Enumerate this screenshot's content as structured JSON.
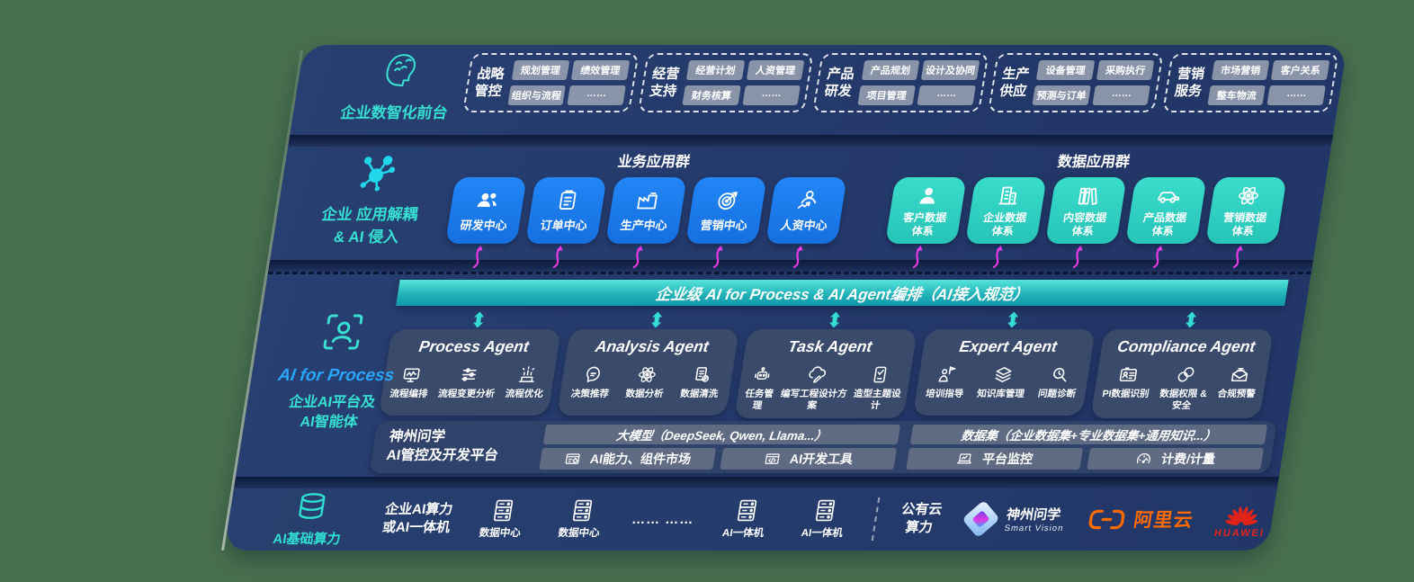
{
  "colors": {
    "navy_band": "#24396b",
    "shelf_dark": "#0c1b3d",
    "accent_teal": "#36e0d2",
    "accent_blue": "#2aa6f8",
    "app_blue": "#1b7bf3",
    "data_teal": "#31d4c6",
    "bar_teal_top": "#55e5dc",
    "bar_teal_bottom": "#0f97ab",
    "magenta_arrow": "#e53ae5",
    "pill_gray": "#8f99ad",
    "panel_gray": "#5f6b82",
    "agent_box": "#3a4a6b",
    "aliyun_orange": "#ff6a00",
    "huawei_red": "#e2231a",
    "page_background": "#47704e"
  },
  "front": {
    "icon": "brain-head-icon",
    "label": "企业数智化前台",
    "groups": [
      {
        "title": "战略管控",
        "items": [
          "规划管理",
          "绩效管理",
          "组织与流程",
          "……"
        ]
      },
      {
        "title": "经营支持",
        "items": [
          "经营计划",
          "人资管理",
          "财务核算",
          "……"
        ]
      },
      {
        "title": "产品研发",
        "items": [
          "产品规划",
          "设计及协同",
          "项目管理",
          "……"
        ]
      },
      {
        "title": "生产供应",
        "items": [
          "设备管理",
          "采购执行",
          "预测与订单",
          "……"
        ]
      },
      {
        "title": "营销服务",
        "items": [
          "市场营销",
          "客户关系",
          "整车物流",
          "……"
        ]
      }
    ]
  },
  "apps": {
    "icon": "molecule-icon",
    "label1": "企业 应用解耦",
    "label2": "& AI 侵入",
    "business_title": "业务应用群",
    "data_title": "数据应用群",
    "business": [
      {
        "label": "研发中心",
        "icon": "team-icon"
      },
      {
        "label": "订单中心",
        "icon": "clipboard-icon"
      },
      {
        "label": "生产中心",
        "icon": "factory-icon"
      },
      {
        "label": "营销中心",
        "icon": "target-icon"
      },
      {
        "label": "人资中心",
        "icon": "hr-icon"
      }
    ],
    "data": [
      {
        "label": "客户数据体系",
        "icon": "person-icon"
      },
      {
        "label": "企业数据体系",
        "icon": "building-icon"
      },
      {
        "label": "内容数据体系",
        "icon": "books-icon"
      },
      {
        "label": "产品数据体系",
        "icon": "car-icon"
      },
      {
        "label": "营销数据体系",
        "icon": "atom-icon"
      }
    ]
  },
  "bar": {
    "label": "企业级 AI for Process & AI Agent编排（AI接入规范）"
  },
  "agents": {
    "icon": "scan-person-icon",
    "label1": "AI for Process",
    "label2": "企业AI平台及",
    "label3": "AI智能体",
    "list": [
      {
        "title": "Process Agent",
        "items": [
          {
            "label": "流程编排",
            "icon": "monitor-wave-icon"
          },
          {
            "label": "流程变更分析",
            "icon": "sliders-icon"
          },
          {
            "label": "流程优化",
            "icon": "spark-icon"
          }
        ]
      },
      {
        "title": "Analysis Agent",
        "items": [
          {
            "label": "决策推荐",
            "icon": "chat-idea-icon"
          },
          {
            "label": "数据分析",
            "icon": "atom-icon"
          },
          {
            "label": "数据清洗",
            "icon": "doc-clean-icon"
          }
        ]
      },
      {
        "title": "Task Agent",
        "items": [
          {
            "label": "任务管理",
            "icon": "robot-icon"
          },
          {
            "label": "编写工程设计方案",
            "icon": "cloud-write-icon"
          },
          {
            "label": "造型主题设计",
            "icon": "tablet-check-icon"
          }
        ]
      },
      {
        "title": "Expert Agent",
        "items": [
          {
            "label": "培训指导",
            "icon": "training-icon"
          },
          {
            "label": "知识库管理",
            "icon": "layers-icon"
          },
          {
            "label": "问题诊断",
            "icon": "diagnose-icon"
          }
        ]
      },
      {
        "title": "Compliance Agent",
        "items": [
          {
            "label": "PI数据识别",
            "icon": "idcard-icon"
          },
          {
            "label": "数据权限 &\n安全",
            "icon": "permission-icon"
          },
          {
            "label": "合规预警",
            "icon": "alert-mail-icon"
          }
        ]
      }
    ]
  },
  "platform": {
    "label1": "神州问学",
    "label2": "AI管控及开发平台",
    "model_bar": "大模型（DeepSeek, Qwen, Llama...）",
    "dataset_bar": "数据集（企业数据集+专业数据集+通用知识...）",
    "cells": [
      {
        "label": "AI能力、组件市场",
        "icon": "components-icon"
      },
      {
        "label": "AI开发工具",
        "icon": "devtools-icon"
      },
      {
        "label": "平台监控",
        "icon": "laptop-chart-icon"
      },
      {
        "label": "计费/计量",
        "icon": "gauge-icon"
      }
    ]
  },
  "infra": {
    "icon": "database-icon",
    "label": "AI基础算力",
    "compute1": "企业AI算力",
    "compute2": "或AI一体机",
    "nodes": [
      {
        "label": "数据中心",
        "icon": "server-icon"
      },
      {
        "label": "数据中心",
        "icon": "server-icon"
      },
      {
        "label": "…… ……",
        "icon": ""
      },
      {
        "label": "AI一体机",
        "icon": "server-icon"
      },
      {
        "label": "AI一体机",
        "icon": "server-icon"
      }
    ],
    "cloud1": "公有云",
    "cloud2": "算力",
    "partners": {
      "smartvision_name": "神州问学",
      "smartvision_sub": "Smart Vision",
      "aliyun": "阿里云",
      "huawei": "HUAWEI"
    }
  }
}
